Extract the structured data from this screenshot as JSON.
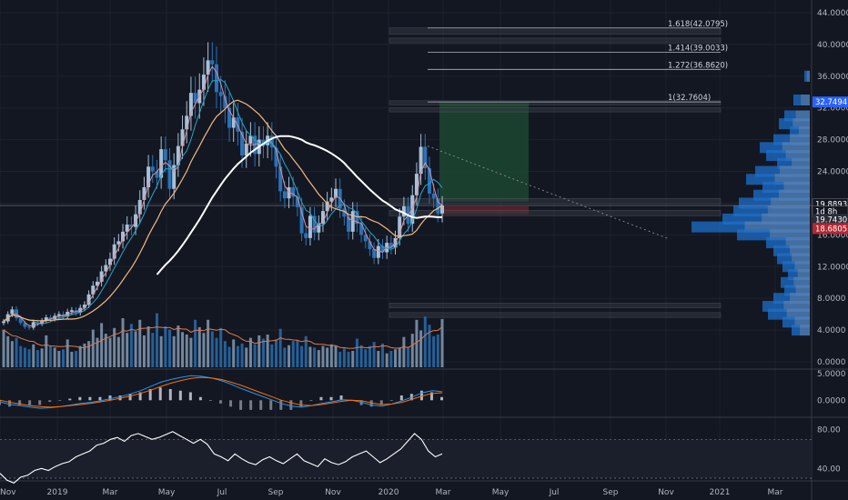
{
  "colors": {
    "background": "#131722",
    "grid": "#1e222d",
    "text": "#b2b5be",
    "candle_up": "#a8bfd6",
    "candle_down": "#2a73b8",
    "ma_fast": "#d88fa0",
    "ma_mid": "#26a6c9",
    "ma_slow": "#f2b884",
    "ma_long": "#ffffff",
    "macd_line": "#2196f3",
    "signal_line": "#ff6d00",
    "rsi_line": "#ffffff",
    "volume_profile": "#1e6fcb",
    "target_zone": "#1c4630",
    "stop_zone": "#5d2128",
    "price_badge_current": "#2962ff",
    "price_badge_red": "#b22833"
  },
  "price_axis": {
    "ticks": [
      "44.0000",
      "40.0000",
      "36.0000",
      "32.0000",
      "28.0000",
      "24.0000",
      "20.0000",
      "16.0000",
      "12.0000",
      "8.0000",
      "4.0000",
      "0.0000"
    ],
    "badges": [
      {
        "label": "32.7494",
        "value": 32.7494,
        "color": "#2962ff"
      },
      {
        "label": "19.8893",
        "value": 19.8893,
        "color": "#131722"
      },
      {
        "label": "1d 8h",
        "value": 18.95,
        "color": "#131722"
      },
      {
        "label": "19.7430",
        "value": 17.95,
        "color": "#2a2e39"
      },
      {
        "label": "18.6805",
        "value": 16.8,
        "color": "#b22833"
      }
    ]
  },
  "macd_axis": {
    "ticks": [
      "5.0000",
      "0.0000"
    ]
  },
  "rsi_axis": {
    "ticks": [
      "80.00",
      "40.00"
    ]
  },
  "time_axis": {
    "labels": [
      "Nov",
      "2019",
      "Mar",
      "May",
      "Jul",
      "Sep",
      "Nov",
      "2020",
      "Mar",
      "May",
      "Jul",
      "Sep",
      "Nov",
      "2021",
      "Mar"
    ]
  },
  "fibonacci": [
    {
      "label": "1.618(42.0795)",
      "value": 42.0795
    },
    {
      "label": "1.414(39.0033)",
      "value": 39.0033
    },
    {
      "label": "1.272(36.8620)",
      "value": 36.862
    },
    {
      "label": "1(32.7604)",
      "value": 32.7604
    }
  ],
  "chart_data": [
    {
      "type": "candlestick",
      "ylim": [
        0,
        44
      ],
      "timeframe": "1W",
      "close_series": [
        5.1,
        6.0,
        6.6,
        5.5,
        4.9,
        4.4,
        4.3,
        5.0,
        4.8,
        5.2,
        5.6,
        5.4,
        5.8,
        6.0,
        5.7,
        6.3,
        6.5,
        6.2,
        6.8,
        7.2,
        8.5,
        9.6,
        10.1,
        11.4,
        12.2,
        13.0,
        14.8,
        15.2,
        16.4,
        17.3,
        17.0,
        18.6,
        20.4,
        22.0,
        24.6,
        24.0,
        23.2,
        26.8,
        25.4,
        21.8,
        24.8,
        27.2,
        29.3,
        31.0,
        33.9,
        32.6,
        34.3,
        36.2,
        38.0,
        37.5,
        34.0,
        33.5,
        32.0,
        29.5,
        30.8,
        29.0,
        26.0,
        27.5,
        28.5,
        26.2,
        28.0,
        27.3,
        28.5,
        27.0,
        24.6,
        21.5,
        20.6,
        22.0,
        20.8,
        19.5,
        16.2,
        15.6,
        18.4,
        16.3,
        17.4,
        19.0,
        20.2,
        20.7,
        21.8,
        19.3,
        18.3,
        16.4,
        19.0,
        17.4,
        16.0,
        15.2,
        14.2,
        13.1,
        14.6,
        13.8,
        15.0,
        14.4,
        15.6,
        18.3,
        19.6,
        17.4,
        21.0,
        23.7,
        27.1,
        24.4,
        21.2,
        20.6,
        18.7,
        19.7
      ],
      "overlays": [
        "MA fast",
        "MA mid",
        "MA slow",
        "MA long"
      ],
      "volume": [
        4.6,
        3.8,
        3.2,
        3.6,
        2.6,
        2.4,
        2.2,
        2.8,
        2.1,
        2.3,
        3.9,
        2.6,
        2.4,
        2.0,
        2.2,
        3.4,
        1.9,
        2.0,
        2.6,
        2.9,
        3.2,
        4.6,
        3.6,
        5.4,
        4.1,
        3.6,
        4.8,
        3.7,
        6.0,
        4.2,
        5.3,
        4.4,
        5.8,
        3.9,
        5.0,
        4.2,
        6.6,
        3.8,
        5.0,
        4.6,
        3.8,
        5.1,
        4.3,
        4.0,
        3.6,
        5.8,
        4.9,
        4.2,
        5.8,
        4.4,
        3.6,
        4.8,
        3.2,
        2.5,
        3.4,
        2.6,
        2.9,
        2.4,
        3.6,
        2.8,
        3.9,
        3.5,
        4.0,
        2.8,
        3.4,
        4.7,
        2.4,
        2.7,
        3.2,
        3.3,
        2.6,
        3.8,
        2.5,
        2.4,
        2.1,
        2.6,
        2.4,
        2.8,
        2.6,
        1.9,
        2.3,
        1.9,
        2.0,
        3.5,
        2.7,
        2.2,
        2.6,
        3.1,
        2.0,
        2.9,
        1.7,
        2.0,
        2.2,
        2.4,
        3.7,
        2.5,
        4.1,
        5.8,
        4.5,
        6.2,
        5.2,
        3.8,
        4.0,
        5.9
      ]
    },
    {
      "type": "line",
      "title": "",
      "ylim": [
        -2,
        5
      ],
      "series": [
        {
          "values": [
            -0.3,
            -0.8,
            -1.0,
            -1.3,
            -1.5,
            -1.4,
            -1.2,
            -0.9,
            -0.6,
            -0.4,
            -0.1,
            0.3,
            0.7,
            1.2,
            1.8,
            2.6,
            3.4,
            3.9,
            4.3,
            4.6,
            4.5,
            4.2,
            3.7,
            3.0,
            2.2,
            1.5,
            0.8,
            0.1,
            -0.6,
            -1.1,
            -1.3,
            -1.0,
            -0.6,
            -0.3,
            0.1,
            0.0,
            -0.4,
            -0.9,
            -1.1,
            -0.7,
            -0.1,
            0.6,
            1.4,
            1.8,
            1.6
          ]
        },
        {
          "values": [
            0.0,
            -0.4,
            -0.7,
            -1.0,
            -1.2,
            -1.3,
            -1.2,
            -1.0,
            -0.8,
            -0.6,
            -0.3,
            0.0,
            0.4,
            0.8,
            1.3,
            1.9,
            2.6,
            3.2,
            3.7,
            4.1,
            4.3,
            4.2,
            3.9,
            3.4,
            2.8,
            2.1,
            1.4,
            0.7,
            0.0,
            -0.5,
            -0.9,
            -1.0,
            -0.8,
            -0.5,
            -0.2,
            0.0,
            -0.1,
            -0.5,
            -0.8,
            -0.7,
            -0.4,
            0.2,
            0.8,
            1.3,
            1.4
          ]
        }
      ]
    },
    {
      "type": "line",
      "title": "",
      "ylim": [
        30,
        90
      ],
      "bands": [
        70,
        30
      ],
      "series": [
        {
          "values": [
            35,
            28,
            25,
            31,
            33,
            38,
            40,
            38,
            42,
            45,
            47,
            52,
            55,
            58,
            64,
            66,
            70,
            72,
            68,
            74,
            76,
            73,
            70,
            72,
            75,
            78,
            74,
            70,
            66,
            70,
            65,
            55,
            52,
            48,
            55,
            50,
            46,
            44,
            49,
            52,
            48,
            45,
            50,
            55,
            48,
            45,
            42,
            50,
            46,
            44,
            47,
            52,
            55,
            58,
            52,
            46,
            50,
            55,
            60,
            68,
            76,
            70,
            58,
            52,
            55
          ]
        }
      ]
    }
  ]
}
